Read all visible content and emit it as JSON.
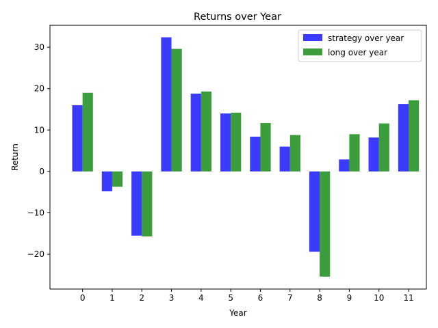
{
  "chart_data": {
    "type": "bar",
    "title": "Returns over Year",
    "xlabel": "Year",
    "ylabel": "Return",
    "categories": [
      "0",
      "1",
      "2",
      "3",
      "4",
      "5",
      "6",
      "7",
      "8",
      "9",
      "10",
      "11"
    ],
    "series": [
      {
        "name": "strategy over year",
        "color": "#3333ff",
        "values": [
          16.0,
          -4.8,
          -15.5,
          32.4,
          18.8,
          14.0,
          8.4,
          6.0,
          -19.4,
          2.9,
          8.2,
          16.3
        ]
      },
      {
        "name": "long over year",
        "color": "#339933",
        "values": [
          19.0,
          -3.7,
          -15.7,
          29.6,
          19.3,
          14.2,
          11.7,
          8.8,
          -25.4,
          9.0,
          11.6,
          17.2
        ]
      }
    ],
    "yticks": [
      -20,
      -10,
      0,
      10,
      20,
      30
    ],
    "ytick_labels": [
      "−20",
      "−10",
      "0",
      "10",
      "20",
      "30"
    ],
    "ylim": [
      -28.4,
      35.3
    ],
    "xlim": [
      -1.1,
      11.6
    ],
    "legend_position": "upper right",
    "grid": false
  }
}
